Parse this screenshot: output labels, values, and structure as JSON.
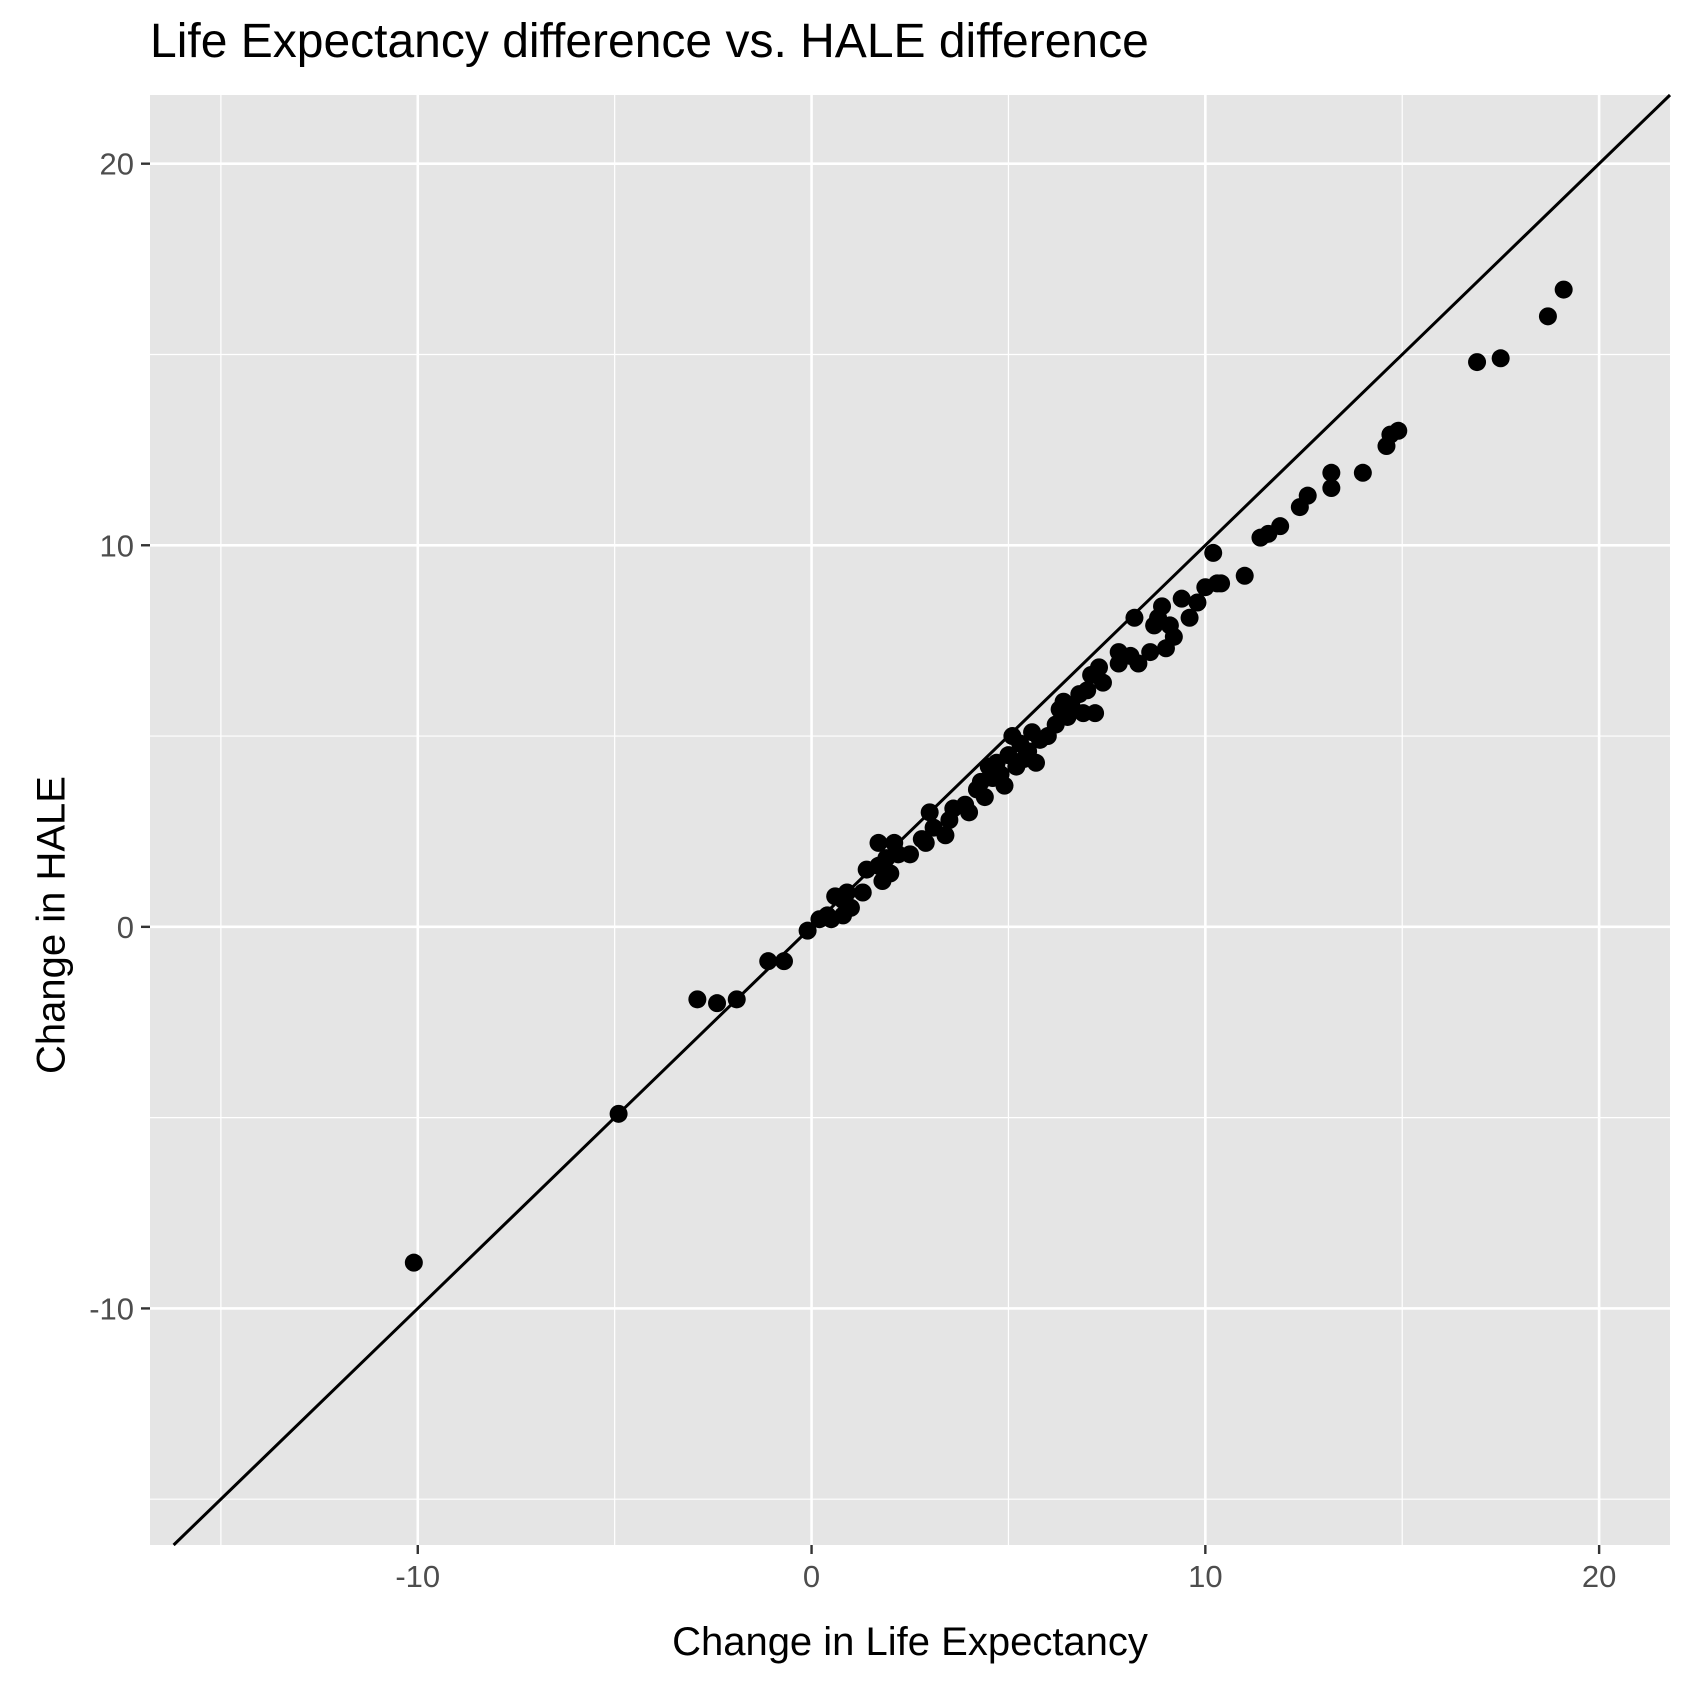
{
  "chart_data": {
    "type": "scatter",
    "title": "Life Expectancy difference vs. HALE difference",
    "xlabel": "Change in Life Expectancy",
    "ylabel": "Change in HALE",
    "xlim": [
      -16.8,
      21.8
    ],
    "ylim": [
      -16.2,
      21.8
    ],
    "x_ticks": [
      -10,
      0,
      10,
      20
    ],
    "y_ticks": [
      -10,
      0,
      10,
      20
    ],
    "x_tick_labels": [
      "-10",
      "0",
      "10",
      "20"
    ],
    "y_tick_labels": [
      "-10",
      "0",
      "10",
      "20"
    ],
    "grid": true,
    "reference_line": {
      "slope": 1,
      "intercept": 0
    },
    "colors": {
      "panel": "#e5e5e5",
      "grid": "#ffffff",
      "point": "#000000",
      "line": "#000000",
      "tick_text": "#4d4d4d"
    },
    "points": [
      [
        -10.1,
        -8.8
      ],
      [
        -4.9,
        -4.9
      ],
      [
        -2.9,
        -1.9
      ],
      [
        -2.4,
        -2.0
      ],
      [
        -1.9,
        -1.9
      ],
      [
        -1.1,
        -0.9
      ],
      [
        -0.7,
        -0.9
      ],
      [
        -0.1,
        -0.1
      ],
      [
        0.2,
        0.2
      ],
      [
        0.4,
        0.3
      ],
      [
        0.5,
        0.2
      ],
      [
        0.6,
        0.8
      ],
      [
        0.8,
        0.7
      ],
      [
        0.9,
        0.9
      ],
      [
        0.8,
        0.3
      ],
      [
        1.0,
        0.5
      ],
      [
        1.3,
        0.9
      ],
      [
        1.4,
        1.5
      ],
      [
        1.7,
        1.6
      ],
      [
        1.7,
        2.2
      ],
      [
        1.8,
        1.2
      ],
      [
        1.9,
        1.8
      ],
      [
        2.0,
        1.4
      ],
      [
        2.1,
        2.2
      ],
      [
        2.2,
        1.9
      ],
      [
        2.5,
        1.9
      ],
      [
        2.8,
        2.3
      ],
      [
        2.9,
        2.2
      ],
      [
        3.0,
        3.0
      ],
      [
        3.1,
        2.6
      ],
      [
        3.4,
        2.4
      ],
      [
        3.5,
        2.8
      ],
      [
        3.6,
        3.1
      ],
      [
        3.9,
        3.2
      ],
      [
        4.0,
        3.0
      ],
      [
        4.2,
        3.6
      ],
      [
        4.3,
        3.8
      ],
      [
        4.4,
        3.4
      ],
      [
        4.5,
        4.2
      ],
      [
        4.6,
        3.9
      ],
      [
        4.7,
        4.3
      ],
      [
        4.8,
        4.0
      ],
      [
        4.9,
        3.7
      ],
      [
        5.0,
        4.5
      ],
      [
        5.1,
        5.0
      ],
      [
        5.2,
        4.2
      ],
      [
        5.3,
        4.8
      ],
      [
        5.4,
        4.4
      ],
      [
        5.5,
        4.6
      ],
      [
        5.6,
        5.1
      ],
      [
        5.7,
        4.3
      ],
      [
        5.8,
        4.9
      ],
      [
        6.0,
        5.0
      ],
      [
        6.2,
        5.3
      ],
      [
        6.3,
        5.7
      ],
      [
        6.4,
        5.9
      ],
      [
        6.5,
        5.5
      ],
      [
        6.6,
        5.8
      ],
      [
        6.8,
        6.1
      ],
      [
        6.9,
        5.6
      ],
      [
        7.0,
        6.2
      ],
      [
        7.1,
        6.6
      ],
      [
        7.2,
        5.6
      ],
      [
        7.3,
        6.8
      ],
      [
        7.4,
        6.4
      ],
      [
        7.8,
        7.2
      ],
      [
        7.8,
        6.9
      ],
      [
        8.1,
        7.1
      ],
      [
        8.2,
        8.1
      ],
      [
        8.3,
        6.9
      ],
      [
        8.6,
        7.2
      ],
      [
        8.7,
        7.9
      ],
      [
        8.8,
        8.1
      ],
      [
        8.9,
        8.4
      ],
      [
        9.0,
        7.3
      ],
      [
        9.1,
        7.9
      ],
      [
        9.2,
        7.6
      ],
      [
        9.4,
        8.6
      ],
      [
        9.6,
        8.1
      ],
      [
        9.8,
        8.5
      ],
      [
        10.0,
        8.9
      ],
      [
        10.2,
        9.8
      ],
      [
        10.3,
        9.0
      ],
      [
        10.4,
        9.0
      ],
      [
        11.0,
        9.2
      ],
      [
        11.4,
        10.2
      ],
      [
        11.6,
        10.3
      ],
      [
        11.9,
        10.5
      ],
      [
        12.4,
        11.0
      ],
      [
        12.6,
        11.3
      ],
      [
        13.2,
        11.9
      ],
      [
        13.2,
        11.5
      ],
      [
        14.0,
        11.9
      ],
      [
        14.6,
        12.6
      ],
      [
        14.7,
        12.9
      ],
      [
        14.9,
        13.0
      ],
      [
        16.9,
        14.8
      ],
      [
        17.5,
        14.9
      ],
      [
        18.7,
        16.0
      ],
      [
        19.1,
        16.7
      ]
    ]
  }
}
